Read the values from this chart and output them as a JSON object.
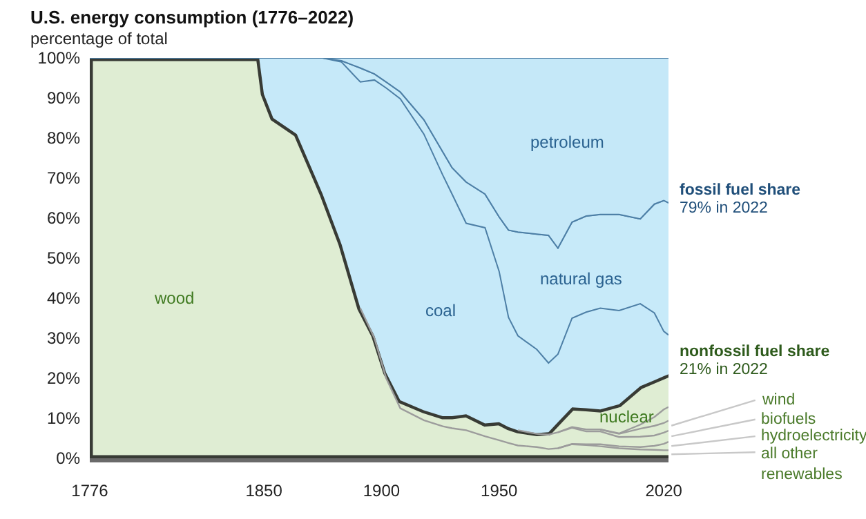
{
  "chart_data": {
    "type": "area",
    "title": "U.S. energy consumption (1776–2022)",
    "ylabel": "percentage of total",
    "stacked": true,
    "x": [
      1776,
      1848,
      1850,
      1854,
      1864,
      1875,
      1883,
      1891,
      1897,
      1902,
      1908,
      1918,
      1926,
      1930,
      1936,
      1944,
      1950,
      1954,
      1958,
      1966,
      1971,
      1975,
      1981,
      1987,
      1993,
      2001,
      2010,
      2016,
      2020,
      2022
    ],
    "xlim": [
      1776,
      2022
    ],
    "xticks": [
      1776,
      1850,
      1900,
      1950,
      2020
    ],
    "ylim": [
      0,
      100
    ],
    "yticks": [
      {
        "value": 0,
        "label": "0%"
      },
      {
        "value": 10,
        "label": "10%"
      },
      {
        "value": 20,
        "label": "20%"
      },
      {
        "value": 30,
        "label": "30%"
      },
      {
        "value": 40,
        "label": "40%"
      },
      {
        "value": 50,
        "label": "50%"
      },
      {
        "value": 60,
        "label": "60%"
      },
      {
        "value": 70,
        "label": "70%"
      },
      {
        "value": 80,
        "label": "80%"
      },
      {
        "value": 90,
        "label": "90%"
      },
      {
        "value": 100,
        "label": "100%"
      }
    ],
    "series": [
      {
        "color": "#dfedd3",
        "values": [
          100,
          100,
          91,
          85,
          81,
          66,
          53.5,
          37.5,
          30.6,
          21.4,
          14.5,
          12,
          10.5,
          10.5,
          11,
          8.7,
          9,
          7.8,
          7,
          6.3,
          6.5,
          9,
          12.7,
          12.5,
          12.2,
          13.5,
          18,
          19.5,
          20.5,
          21
        ]
      },
      {
        "color": "#c6e9f9",
        "values": [
          0,
          0,
          9,
          15,
          19,
          34,
          45.5,
          56.5,
          63.9,
          71.1,
          75.3,
          69,
          60.3,
          55.5,
          47.7,
          48.9,
          37.7,
          27.4,
          23.6,
          20.9,
          17.3,
          17,
          22.3,
          24,
          25.3,
          23.4,
          20.6,
          16.8,
          11.2,
          9.8
        ]
      },
      {
        "color": "#c7eaf9",
        "values": [
          0,
          0,
          0,
          0,
          0,
          0,
          0.3,
          3.5,
          1.5,
          1.5,
          1.7,
          3.6,
          5.8,
          6.6,
          10.3,
          8.4,
          13.6,
          21.8,
          25.9,
          28.8,
          31.9,
          26.5,
          24,
          24,
          23.4,
          24,
          21.2,
          27.2,
          32.7,
          33
        ]
      },
      {
        "color": "#c5e8f8",
        "values": [
          0,
          0,
          0,
          0,
          0,
          0,
          0.7,
          2.5,
          4,
          6,
          8.5,
          15.4,
          23.4,
          27.4,
          31,
          34,
          39.7,
          43,
          43.5,
          44,
          44.3,
          47.5,
          41,
          39.5,
          39.1,
          39.1,
          40.2,
          36.5,
          35.6,
          36.2
        ]
      },
      {
        "type": "line",
        "color": "#9c9c9c",
        "values": [
          null,
          null,
          null,
          null,
          null,
          null,
          null,
          37.5,
          30,
          20,
          12.5,
          9.5,
          8,
          7.5,
          7,
          5.5,
          4.5,
          3.8,
          3.2,
          2.8,
          2.3,
          2.5,
          3.5,
          3.3,
          3,
          2.5,
          2.2,
          2.1,
          2,
          2
        ]
      },
      {
        "type": "line",
        "color": "#9c9c9c",
        "values": [
          null,
          null,
          null,
          null,
          null,
          null,
          null,
          null,
          null,
          null,
          null,
          null,
          null,
          null,
          null,
          null,
          null,
          null,
          null,
          null,
          null,
          2.5,
          3.6,
          3.5,
          3.5,
          3,
          2.8,
          3.1,
          3.6,
          4.1
        ]
      },
      {
        "type": "line",
        "color": "#9c9c9c",
        "values": [
          null,
          null,
          null,
          null,
          null,
          null,
          null,
          null,
          null,
          null,
          null,
          null,
          null,
          null,
          null,
          null,
          null,
          null,
          7,
          6.1,
          5.9,
          6.5,
          7.6,
          6.7,
          6.7,
          5.3,
          5.4,
          5.7,
          6.4,
          6.9
        ]
      },
      {
        "type": "line",
        "color": "#9c9c9c",
        "values": [
          null,
          null,
          null,
          null,
          null,
          null,
          null,
          null,
          null,
          null,
          null,
          null,
          null,
          null,
          null,
          null,
          null,
          null,
          null,
          null,
          null,
          6.5,
          7.8,
          7.2,
          7.2,
          6.1,
          7.4,
          8.1,
          8.8,
          9.4
        ]
      },
      {
        "type": "line",
        "color": "#9c9c9c",
        "values": [
          null,
          null,
          null,
          null,
          null,
          null,
          null,
          null,
          null,
          null,
          null,
          null,
          null,
          null,
          null,
          null,
          null,
          null,
          null,
          null,
          null,
          null,
          null,
          null,
          7.2,
          6.2,
          8.4,
          10.3,
          12.2,
          12.8
        ]
      }
    ],
    "annotations": [
      "wood",
      "coal",
      "natural gas",
      "petroleum",
      "nuclear",
      "fossil fuel share",
      "79% in 2022",
      "nonfossil fuel share",
      "21% in 2022",
      "wind",
      "biofuels",
      "hydroelectricity",
      "all other renewables"
    ]
  }
}
